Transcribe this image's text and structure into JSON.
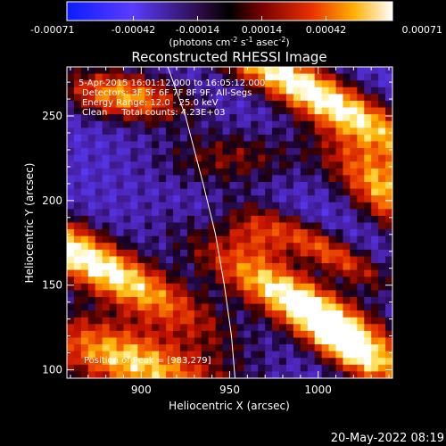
{
  "chart_data": {
    "type": "heatmap",
    "title": "Reconstructed RHESSI Image",
    "xlabel": "Heliocentric X (arcsec)",
    "ylabel": "Heliocentric Y (arcsec)",
    "xlim": [
      858,
      1042
    ],
    "ylim": [
      95,
      279
    ],
    "xticks": [
      900,
      950,
      1000
    ],
    "yticks": [
      100,
      150,
      200,
      250
    ],
    "colorbar": {
      "ticks": [
        "-0.00071",
        "-0.00042",
        "-0.00014",
        "0.00014",
        "0.00042",
        "0.00071"
      ],
      "unit_label": "(photons cm-2 s-1 asec-2)",
      "range": [
        -0.00071,
        0.00071
      ]
    },
    "annotations": [
      "5-Apr-2015 16:01:12.000 to 16:05:12.000",
      "Detectors: 3F 5F 6F 7F 8F 9F, All-Segs",
      "Energy Range: 12.0 - 25.0 keV",
      "Clean     Total counts: 4.23E+03"
    ],
    "peak_label": "Position of Peak = [983,279]",
    "limb_curve": [
      [
        915,
        279
      ],
      [
        925,
        250
      ],
      [
        935,
        210
      ],
      [
        942,
        180
      ],
      [
        947,
        150
      ],
      [
        951,
        120
      ],
      [
        953,
        95
      ]
    ],
    "bright_regions": [
      {
        "x": 995,
        "y": 265,
        "sx": 60,
        "sy": 10,
        "angle": -30,
        "amp": 1.0
      },
      {
        "x": 870,
        "y": 165,
        "sx": 55,
        "sy": 11,
        "angle": -30,
        "amp": 1.0
      },
      {
        "x": 990,
        "y": 140,
        "sx": 45,
        "sy": 11,
        "angle": -30,
        "amp": 0.95
      },
      {
        "x": 895,
        "y": 105,
        "sx": 40,
        "sy": 14,
        "angle": -20,
        "amp": 0.85
      },
      {
        "x": 1040,
        "y": 205,
        "sx": 30,
        "sy": 12,
        "angle": -40,
        "amp": 0.8
      },
      {
        "x": 890,
        "y": 262,
        "sx": 25,
        "sy": 10,
        "angle": -10,
        "amp": 0.75
      },
      {
        "x": 1005,
        "y": 170,
        "sx": 30,
        "sy": 7,
        "angle": -30,
        "amp": 0.6
      },
      {
        "x": 1020,
        "y": 110,
        "sx": 25,
        "sy": 9,
        "angle": -35,
        "amp": 0.7
      },
      {
        "x": 950,
        "y": 225,
        "sx": 30,
        "sy": 12,
        "angle": 0,
        "amp": 0.35
      },
      {
        "x": 965,
        "y": 180,
        "sx": 15,
        "sy": 9,
        "angle": -30,
        "amp": 0.4
      }
    ]
  },
  "footer": {
    "timestamp": "20-May-2022 08:19"
  }
}
